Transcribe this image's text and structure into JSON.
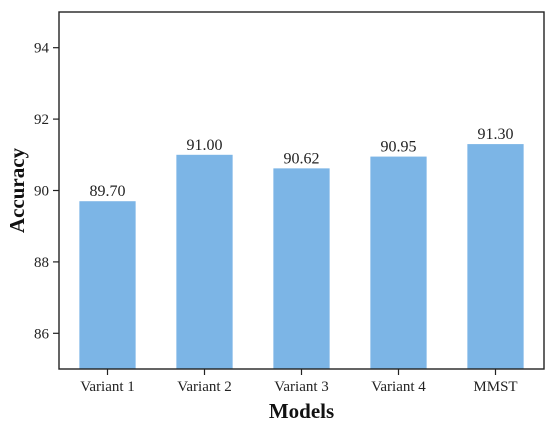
{
  "chart_data": {
    "type": "bar",
    "xlabel": "Models",
    "ylabel": "Accuracy",
    "categories": [
      "Variant 1",
      "Variant 2",
      "Variant 3",
      "Variant 4",
      "MMST"
    ],
    "values": [
      89.7,
      91.0,
      90.62,
      90.95,
      91.3
    ],
    "value_labels": [
      "89.70",
      "91.00",
      "90.62",
      "90.95",
      "91.30"
    ],
    "ylim": [
      85,
      95
    ],
    "yticks": [
      86,
      88,
      90,
      92,
      94
    ],
    "grid": false,
    "legend": "none",
    "colors": {
      "bar": "#7cb5e6",
      "axis": "#222222"
    }
  }
}
